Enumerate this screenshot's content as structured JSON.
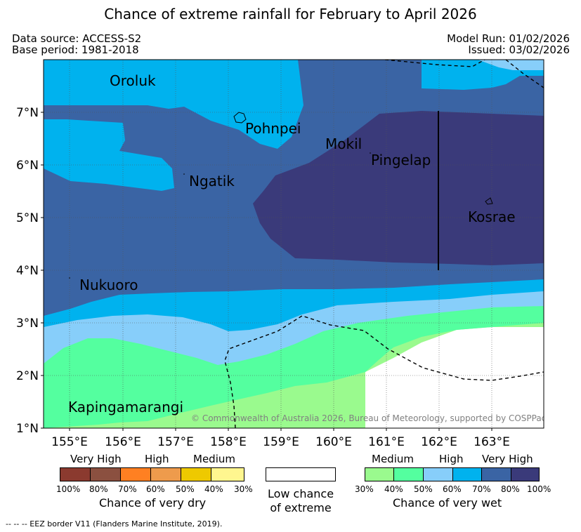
{
  "title": "Chance of extreme rainfall for February to April 2026",
  "meta": {
    "data_source": "Data source: ACCESS-S2",
    "base_period": "Base period: 1981-2018",
    "model_run": "Model Run: 01/02/2026",
    "issued": "Issued: 03/02/2026"
  },
  "map": {
    "lon_range": [
      154.5,
      164.0
    ],
    "lat_range": [
      1.0,
      8.0
    ],
    "x_ticks": [
      "155°E",
      "156°E",
      "157°E",
      "158°E",
      "159°E",
      "160°E",
      "161°E",
      "162°E",
      "163°E"
    ],
    "y_ticks": [
      "1°N",
      "2°N",
      "3°N",
      "4°N",
      "5°N",
      "6°N",
      "7°N"
    ],
    "places": [
      "Oroluk",
      "Pohnpei",
      "Mokil",
      "Pingelap",
      "Ngatik",
      "Kosrae",
      "Nukuoro",
      "Kapingamarangi"
    ],
    "copyright": "© Commonwealth of Australia 2026, Bureau of Meteorology, supported by COSPPac"
  },
  "legend": {
    "dry": {
      "categories": [
        "Very High",
        "High",
        "Medium"
      ],
      "ticks": [
        "100%",
        "80%",
        "70%",
        "60%",
        "50%",
        "40%",
        "30%"
      ],
      "colors": [
        "#8b3a2f",
        "#8b5040",
        "#ff8022",
        "#ee9b4c",
        "#eec900",
        "#fff68f"
      ],
      "caption": "Chance of very dry"
    },
    "low": {
      "line1": "Low chance",
      "line2": "of extreme"
    },
    "wet": {
      "categories": [
        "Medium",
        "High",
        "Very High"
      ],
      "ticks": [
        "30%",
        "40%",
        "50%",
        "60%",
        "70%",
        "80%",
        "100%"
      ],
      "colors": [
        "#9afa8e",
        "#54ff9f",
        "#87cefa",
        "#00b2ee",
        "#3a64a4",
        "#3a3a7a"
      ],
      "caption": "Chance of very wet"
    }
  },
  "footnote": "--  --  -- EEZ border V11 (Flanders Marine Institute, 2019)."
}
